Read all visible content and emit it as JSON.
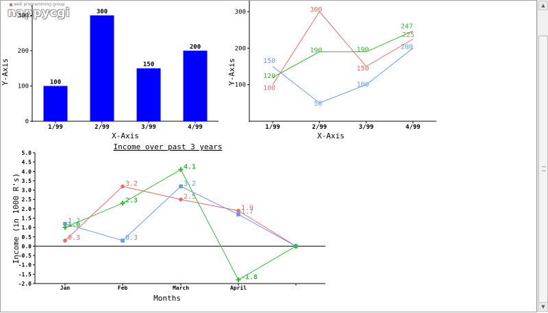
{
  "logo": {
    "tagline": "web programming group",
    "word": "nappycgi"
  },
  "chart_data": [
    {
      "type": "bar",
      "categories": [
        "1/99",
        "2/99",
        "3/99",
        "4/99"
      ],
      "values": [
        100,
        300,
        150,
        200
      ],
      "xlabel": "X-Axis",
      "ylabel": "Y-Axis",
      "ylim": [
        0,
        330
      ],
      "yticks": [
        0,
        100,
        200,
        300
      ],
      "colors": {
        "bar": "#0000ff"
      }
    },
    {
      "type": "line",
      "categories": [
        "1/99",
        "2/99",
        "3/99",
        "4/99"
      ],
      "series": [
        {
          "values": [
            100,
            300,
            150,
            225
          ],
          "color": "#ee6666"
        },
        {
          "values": [
            120,
            190,
            190,
            247
          ],
          "color": "#33bb33"
        },
        {
          "values": [
            150,
            50,
            100,
            200
          ],
          "color": "#6699ee"
        }
      ],
      "xlabel": "X-Axis",
      "ylabel": "Y-Axis",
      "ylim": [
        0,
        330
      ],
      "yticks": [
        100,
        200,
        300
      ]
    },
    {
      "type": "line",
      "title": "Income over past 3 years",
      "categories": [
        "Jan",
        "Feb",
        "March",
        "April",
        ""
      ],
      "series": [
        {
          "values": [
            0.3,
            3.2,
            2.5,
            1.9,
            0.0
          ],
          "color": "#ee6666",
          "marker": "circle"
        },
        {
          "values": [
            1.2,
            0.3,
            3.2,
            1.7,
            0.0
          ],
          "color": "#6699ee",
          "marker": "square"
        },
        {
          "values": [
            1.0,
            2.3,
            4.1,
            -1.8,
            0.0
          ],
          "color": "#33bb33",
          "marker": "cross"
        }
      ],
      "xlabel": "Months",
      "ylabel": "Income (in 1000 R's)",
      "ylim": [
        -2.0,
        5.0
      ],
      "yticks": [
        "5.0",
        "4.5",
        "4.0",
        "3.5",
        "3.0",
        "2.5",
        "2.0",
        "1.5",
        "1.0",
        "0.5",
        "0.0",
        "-0.5",
        "-1.0",
        "-1.5",
        "-2.0"
      ]
    }
  ]
}
